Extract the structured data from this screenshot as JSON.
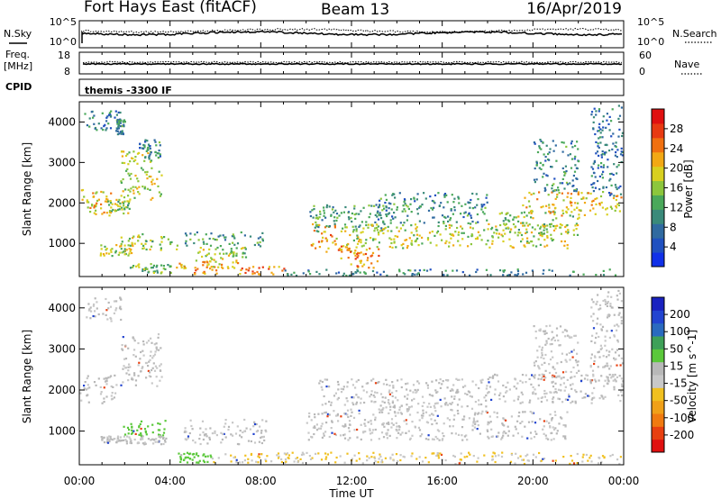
{
  "header": {
    "title": "Fort Hays East (fitACF)",
    "beam": "Beam 13",
    "date": "16/Apr/2019"
  },
  "noise_panel": {
    "left_label": "N.Sky",
    "right_label": "N.Search",
    "left_ticks": [
      "10^5",
      "10^0"
    ],
    "right_ticks": [
      "10^5",
      "10^0"
    ]
  },
  "freq_panel": {
    "left_label_line1": "Freq.",
    "left_label_line2": "[MHz]",
    "right_label": "Nave",
    "left_ticks": [
      "18",
      "8"
    ],
    "right_ticks": [
      "60",
      "0"
    ]
  },
  "cpid_panel": {
    "label": "CPID",
    "text": "themis -3300 IF"
  },
  "chart_data": [
    {
      "type": "heatmap",
      "panel": "power",
      "ylabel": "Slant Range [km]",
      "ylim": [
        180,
        4500
      ],
      "yticks": [
        1000,
        2000,
        3000,
        4000
      ],
      "xlim": [
        0,
        24
      ],
      "colorbar": {
        "label": "Power [dB]",
        "ticks": [
          "4",
          "8",
          "12",
          "16",
          "20",
          "24",
          "28"
        ],
        "colors": [
          "#1030e8",
          "#2050c0",
          "#306aa0",
          "#3a8a7a",
          "#4aa85a",
          "#8cc63c",
          "#d8d020",
          "#f2a814",
          "#f07010",
          "#e83a12",
          "#e01010"
        ],
        "range": [
          0,
          32
        ]
      },
      "regions": [
        {
          "x0": 0.0,
          "x1": 1.6,
          "y0": 1700,
          "y1": 2400,
          "v": 20
        },
        {
          "x0": 1.2,
          "x1": 2.2,
          "y0": 1750,
          "y1": 2100,
          "v": 16
        },
        {
          "x0": 1.8,
          "x1": 3.6,
          "y0": 2100,
          "y1": 3300,
          "v": 18
        },
        {
          "x0": 2.6,
          "x1": 3.6,
          "y0": 3100,
          "y1": 3600,
          "v": 10
        },
        {
          "x0": 0.2,
          "x1": 1.8,
          "y0": 3800,
          "y1": 4300,
          "v": 8
        },
        {
          "x0": 1.6,
          "x1": 2.0,
          "y0": 3700,
          "y1": 4100,
          "v": 10
        },
        {
          "x0": 0.9,
          "x1": 2.3,
          "y0": 700,
          "y1": 1000,
          "v": 18
        },
        {
          "x0": 1.8,
          "x1": 4.4,
          "y0": 850,
          "y1": 1250,
          "v": 16
        },
        {
          "x0": 2.2,
          "x1": 4.0,
          "y0": 280,
          "y1": 520,
          "v": 14
        },
        {
          "x0": 4.2,
          "x1": 7.8,
          "y0": 400,
          "y1": 650,
          "v": 20
        },
        {
          "x0": 5.0,
          "x1": 9.2,
          "y0": 250,
          "y1": 450,
          "v": 24
        },
        {
          "x0": 4.6,
          "x1": 8.2,
          "y0": 950,
          "y1": 1300,
          "v": 12
        },
        {
          "x0": 5.2,
          "x1": 7.4,
          "y0": 650,
          "y1": 950,
          "v": 16
        },
        {
          "x0": 10.2,
          "x1": 12.0,
          "y0": 800,
          "y1": 1500,
          "v": 22
        },
        {
          "x0": 10.0,
          "x1": 13.5,
          "y0": 1300,
          "y1": 2000,
          "v": 12
        },
        {
          "x0": 11.5,
          "x1": 13.2,
          "y0": 400,
          "y1": 900,
          "v": 22
        },
        {
          "x0": 12.0,
          "x1": 21.5,
          "y0": 900,
          "y1": 1500,
          "v": 18
        },
        {
          "x0": 13.0,
          "x1": 18.0,
          "y0": 1500,
          "y1": 2300,
          "v": 10
        },
        {
          "x0": 18.5,
          "x1": 22.0,
          "y0": 1200,
          "y1": 1800,
          "v": 16
        },
        {
          "x0": 19.5,
          "x1": 24.0,
          "y0": 1700,
          "y1": 2300,
          "v": 20
        },
        {
          "x0": 20.0,
          "x1": 22.0,
          "y0": 2300,
          "y1": 3600,
          "v": 10
        },
        {
          "x0": 22.5,
          "x1": 24.0,
          "y0": 2200,
          "y1": 4450,
          "v": 8
        },
        {
          "x0": 9.0,
          "x1": 24.0,
          "y0": 220,
          "y1": 380,
          "v": 10
        }
      ]
    },
    {
      "type": "heatmap",
      "panel": "velocity",
      "ylabel": "Slant Range [km]",
      "xlabel": "Time UT",
      "ylim": [
        180,
        4500
      ],
      "yticks": [
        1000,
        2000,
        3000,
        4000
      ],
      "xlim": [
        0,
        24
      ],
      "xticklabels": [
        "00:00",
        "04:00",
        "08:00",
        "12:00",
        "16:00",
        "20:00",
        "00:00"
      ],
      "colorbar": {
        "label": "Velocity [m s^-1]",
        "ticks": [
          "200",
          "100",
          "50",
          "15",
          "-15",
          "-50",
          "-100",
          "-200"
        ],
        "colors": [
          "#1a22c0",
          "#2244d0",
          "#2a6abf",
          "#3ea058",
          "#5ac83a",
          "#b8b8b8",
          "#c8c8c8",
          "#f0c020",
          "#f0a018",
          "#f07a10",
          "#e84010",
          "#e01010"
        ],
        "range": [
          -250,
          250
        ]
      },
      "regions": [
        {
          "x0": 0.0,
          "x1": 1.6,
          "y0": 1700,
          "y1": 2400,
          "v": 0
        },
        {
          "x0": 1.8,
          "x1": 3.6,
          "y0": 2100,
          "y1": 3400,
          "v": 0
        },
        {
          "x0": 0.2,
          "x1": 1.8,
          "y0": 3700,
          "y1": 4300,
          "v": 0
        },
        {
          "x0": 0.9,
          "x1": 2.3,
          "y0": 700,
          "y1": 900,
          "v": 0
        },
        {
          "x0": 1.9,
          "x1": 3.8,
          "y0": 900,
          "y1": 1300,
          "v": 60
        },
        {
          "x0": 2.2,
          "x1": 3.8,
          "y0": 700,
          "y1": 900,
          "v": 0
        },
        {
          "x0": 4.6,
          "x1": 8.2,
          "y0": 700,
          "y1": 1300,
          "v": 0
        },
        {
          "x0": 4.3,
          "x1": 5.8,
          "y0": 250,
          "y1": 500,
          "v": 60
        },
        {
          "x0": 5.8,
          "x1": 9.2,
          "y0": 250,
          "y1": 480,
          "v": -40
        },
        {
          "x0": 9.0,
          "x1": 24.0,
          "y0": 190,
          "y1": 500,
          "v": -40
        },
        {
          "x0": 10.0,
          "x1": 21.5,
          "y0": 800,
          "y1": 1500,
          "v": 0
        },
        {
          "x0": 10.5,
          "x1": 18.0,
          "y0": 1500,
          "y1": 2300,
          "v": 0
        },
        {
          "x0": 18.0,
          "x1": 24.0,
          "y0": 1700,
          "y1": 2400,
          "v": 0
        },
        {
          "x0": 20.0,
          "x1": 22.0,
          "y0": 2300,
          "y1": 3600,
          "v": 0
        },
        {
          "x0": 22.5,
          "x1": 24.0,
          "y0": 2200,
          "y1": 4450,
          "v": 0
        }
      ]
    }
  ]
}
